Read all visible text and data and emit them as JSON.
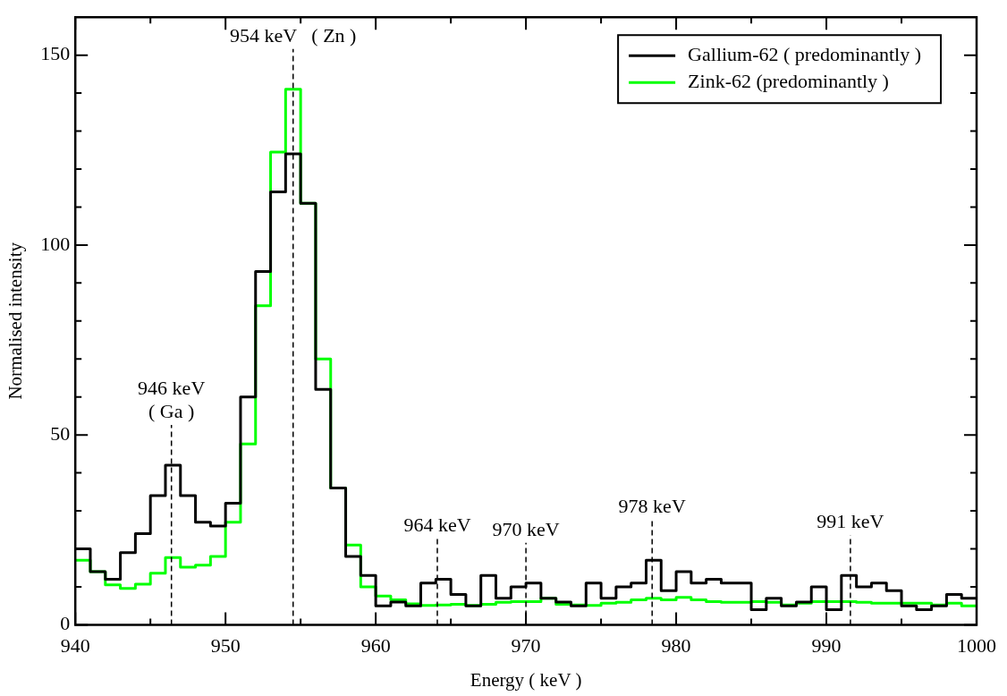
{
  "chart_data": {
    "type": "histogram",
    "xlabel": "Energy ( keV )",
    "ylabel": "Normalised intensity",
    "bins": [
      940,
      941,
      942,
      943,
      944,
      945,
      946,
      947,
      948,
      949,
      950,
      951,
      952,
      953,
      954,
      955,
      956,
      957,
      958,
      959,
      960,
      961,
      962,
      963,
      964,
      965,
      966,
      967,
      968,
      969,
      970,
      971,
      972,
      973,
      974,
      975,
      976,
      977,
      978,
      979,
      980,
      981,
      982,
      983,
      984,
      985,
      986,
      987,
      988,
      989,
      990,
      991,
      992,
      993,
      994,
      995,
      996,
      997,
      998,
      999,
      1000
    ],
    "series": [
      {
        "name": "Gallium-62 ( predominantly )",
        "color": "#000000",
        "values": [
          20,
          14,
          12,
          19,
          24,
          34,
          42,
          34,
          27,
          26,
          32,
          60,
          93,
          114,
          124,
          111,
          62,
          36,
          18,
          13,
          5,
          6,
          5,
          11,
          12,
          8,
          5,
          13,
          7,
          10,
          11,
          7,
          6,
          5,
          11,
          7,
          10,
          11,
          17,
          9,
          14,
          11,
          12,
          11,
          11,
          4,
          7,
          5,
          6,
          10,
          4,
          13,
          10,
          11,
          9,
          5,
          4,
          5,
          8,
          7
        ]
      },
      {
        "name": "Zink-62 (predominantly )",
        "color": "#00ff00",
        "values": [
          17,
          14,
          10.5,
          9.6,
          10.7,
          13.6,
          17.7,
          15.2,
          15.7,
          18,
          27,
          47.6,
          84,
          124.5,
          141,
          111,
          70,
          36,
          21,
          10,
          7.6,
          6.6,
          5.5,
          5.1,
          5.2,
          5.4,
          5.1,
          5.4,
          5.9,
          6.1,
          6.1,
          7,
          5.4,
          5.2,
          5.1,
          5.7,
          5.9,
          6.6,
          7,
          6.6,
          7.2,
          6.6,
          6.1,
          5.9,
          5.9,
          6.1,
          5.9,
          5.2,
          5.7,
          6.1,
          6.1,
          6.1,
          5.9,
          5.7,
          5.7,
          5.7,
          5.7,
          5.2,
          5.7,
          5
        ]
      }
    ],
    "xlim": [
      940,
      1000
    ],
    "xticks": [
      940,
      {
        "value": 945,
        "label": null
      },
      950,
      {
        "value": 955,
        "label": null
      },
      960,
      {
        "value": 965,
        "label": null
      },
      970,
      {
        "value": 975,
        "label": null
      },
      980,
      {
        "value": 985,
        "label": null
      },
      990,
      {
        "value": 995,
        "label": null
      },
      1000
    ],
    "ylim": [
      0,
      160
    ],
    "yticks": [
      0,
      {
        "value": 10,
        "label": null
      },
      {
        "value": 20,
        "label": null
      },
      {
        "value": 30,
        "label": null
      },
      {
        "value": 40,
        "label": null
      },
      50,
      {
        "value": 60,
        "label": null
      },
      {
        "value": 70,
        "label": null
      },
      {
        "value": 80,
        "label": null
      },
      {
        "value": 90,
        "label": null
      },
      100,
      {
        "value": 110,
        "label": null
      },
      {
        "value": 120,
        "label": null
      },
      {
        "value": 130,
        "label": null
      },
      {
        "value": 140,
        "label": null
      },
      150
    ],
    "ref_lines": [
      {
        "axis": "x",
        "value": 946.4,
        "label": "946 keV\n( Ga )",
        "line_style": "dashed",
        "color": "#000000"
      },
      {
        "axis": "x",
        "value": 954.5,
        "label": "954 keV   ( Zn )",
        "line_style": "dashed",
        "color": "#000000"
      },
      {
        "axis": "x",
        "value": 964.1,
        "label": "964 keV",
        "line_style": "dashed",
        "color": "#000000"
      },
      {
        "axis": "x",
        "value": 970,
        "label": "970 keV",
        "line_style": "dashed",
        "color": "#000000"
      },
      {
        "axis": "x",
        "value": 978.4,
        "label": "978 keV",
        "line_style": "dashed",
        "color": "#000000"
      },
      {
        "axis": "x",
        "value": 991.6,
        "label": "991 keV",
        "line_style": "dashed",
        "color": "#000000"
      }
    ],
    "legend": "top right",
    "grid": false,
    "line_style": "solid",
    "marker": "none"
  }
}
